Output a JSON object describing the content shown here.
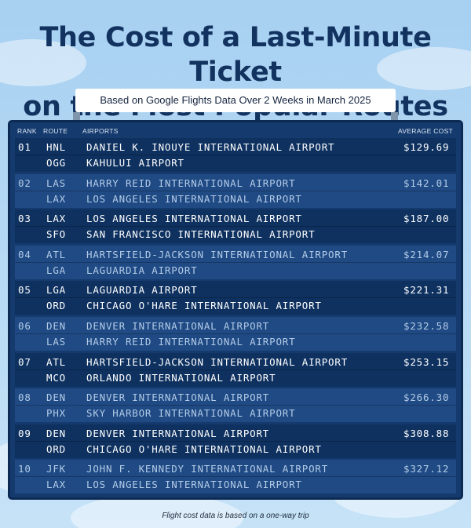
{
  "title_line1": "The Cost of a Last-Minute Ticket",
  "title_line2": "on the Most Popular Routes",
  "subtitle": "Based on Google Flights Data Over 2 Weeks in March 2025",
  "headers": {
    "rank": "RANK",
    "route": "ROUTE",
    "airports": "AIRPORTS",
    "average_cost": "AVERAGE COST"
  },
  "rows": [
    {
      "rank": "01",
      "from_code": "HNL",
      "to_code": "OGG",
      "from_airport": "DANIEL K. INOUYE INTERNATIONAL AIRPORT",
      "to_airport": "KAHULUI AIRPORT",
      "cost": "$129.69"
    },
    {
      "rank": "02",
      "from_code": "LAS",
      "to_code": "LAX",
      "from_airport": "HARRY REID INTERNATIONAL AIRPORT",
      "to_airport": "LOS ANGELES INTERNATIONAL AIRPORT",
      "cost": "$142.01"
    },
    {
      "rank": "03",
      "from_code": "LAX",
      "to_code": "SFO",
      "from_airport": "LOS ANGELES INTERNATIONAL AIRPORT",
      "to_airport": "SAN FRANCISCO INTERNATIONAL AIRPORT",
      "cost": "$187.00"
    },
    {
      "rank": "04",
      "from_code": "ATL",
      "to_code": "LGA",
      "from_airport": "HARTSFIELD-JACKSON INTERNATIONAL AIRPORT",
      "to_airport": "LAGUARDIA AIRPORT",
      "cost": "$214.07"
    },
    {
      "rank": "05",
      "from_code": "LGA",
      "to_code": "ORD",
      "from_airport": "LAGUARDIA AIRPORT",
      "to_airport": "CHICAGO O'HARE INTERNATIONAL AIRPORT",
      "cost": "$221.31"
    },
    {
      "rank": "06",
      "from_code": "DEN",
      "to_code": "LAS",
      "from_airport": "DENVER INTERNATIONAL AIRPORT",
      "to_airport": "HARRY REID INTERNATIONAL AIRPORT",
      "cost": "$232.58"
    },
    {
      "rank": "07",
      "from_code": "ATL",
      "to_code": "MCO",
      "from_airport": "HARTSFIELD-JACKSON INTERNATIONAL AIRPORT",
      "to_airport": "ORLANDO INTERNATIONAL AIRPORT",
      "cost": "$253.15"
    },
    {
      "rank": "08",
      "from_code": "DEN",
      "to_code": "PHX",
      "from_airport": "DENVER INTERNATIONAL AIRPORT",
      "to_airport": "SKY HARBOR INTERNATIONAL AIRPORT",
      "cost": "$266.30"
    },
    {
      "rank": "09",
      "from_code": "DEN",
      "to_code": "ORD",
      "from_airport": "DENVER INTERNATIONAL AIRPORT",
      "to_airport": "CHICAGO O'HARE INTERNATIONAL AIRPORT",
      "cost": "$308.88"
    },
    {
      "rank": "10",
      "from_code": "JFK",
      "to_code": "LAX",
      "from_airport": "JOHN F. KENNEDY INTERNATIONAL AIRPORT",
      "to_airport": "LOS ANGELES INTERNATIONAL AIRPORT",
      "cost": "$327.12"
    }
  ],
  "footnote": "Flight cost data is based on a one-way trip",
  "colors": {
    "background": "#b3d8f3",
    "title": "#12325f",
    "board": "#153a6e",
    "row_highlight": "#1f4a84",
    "row_dark": "#0e3160",
    "text_bright": "#ffffff",
    "text_dim": "#b3cbe7"
  }
}
